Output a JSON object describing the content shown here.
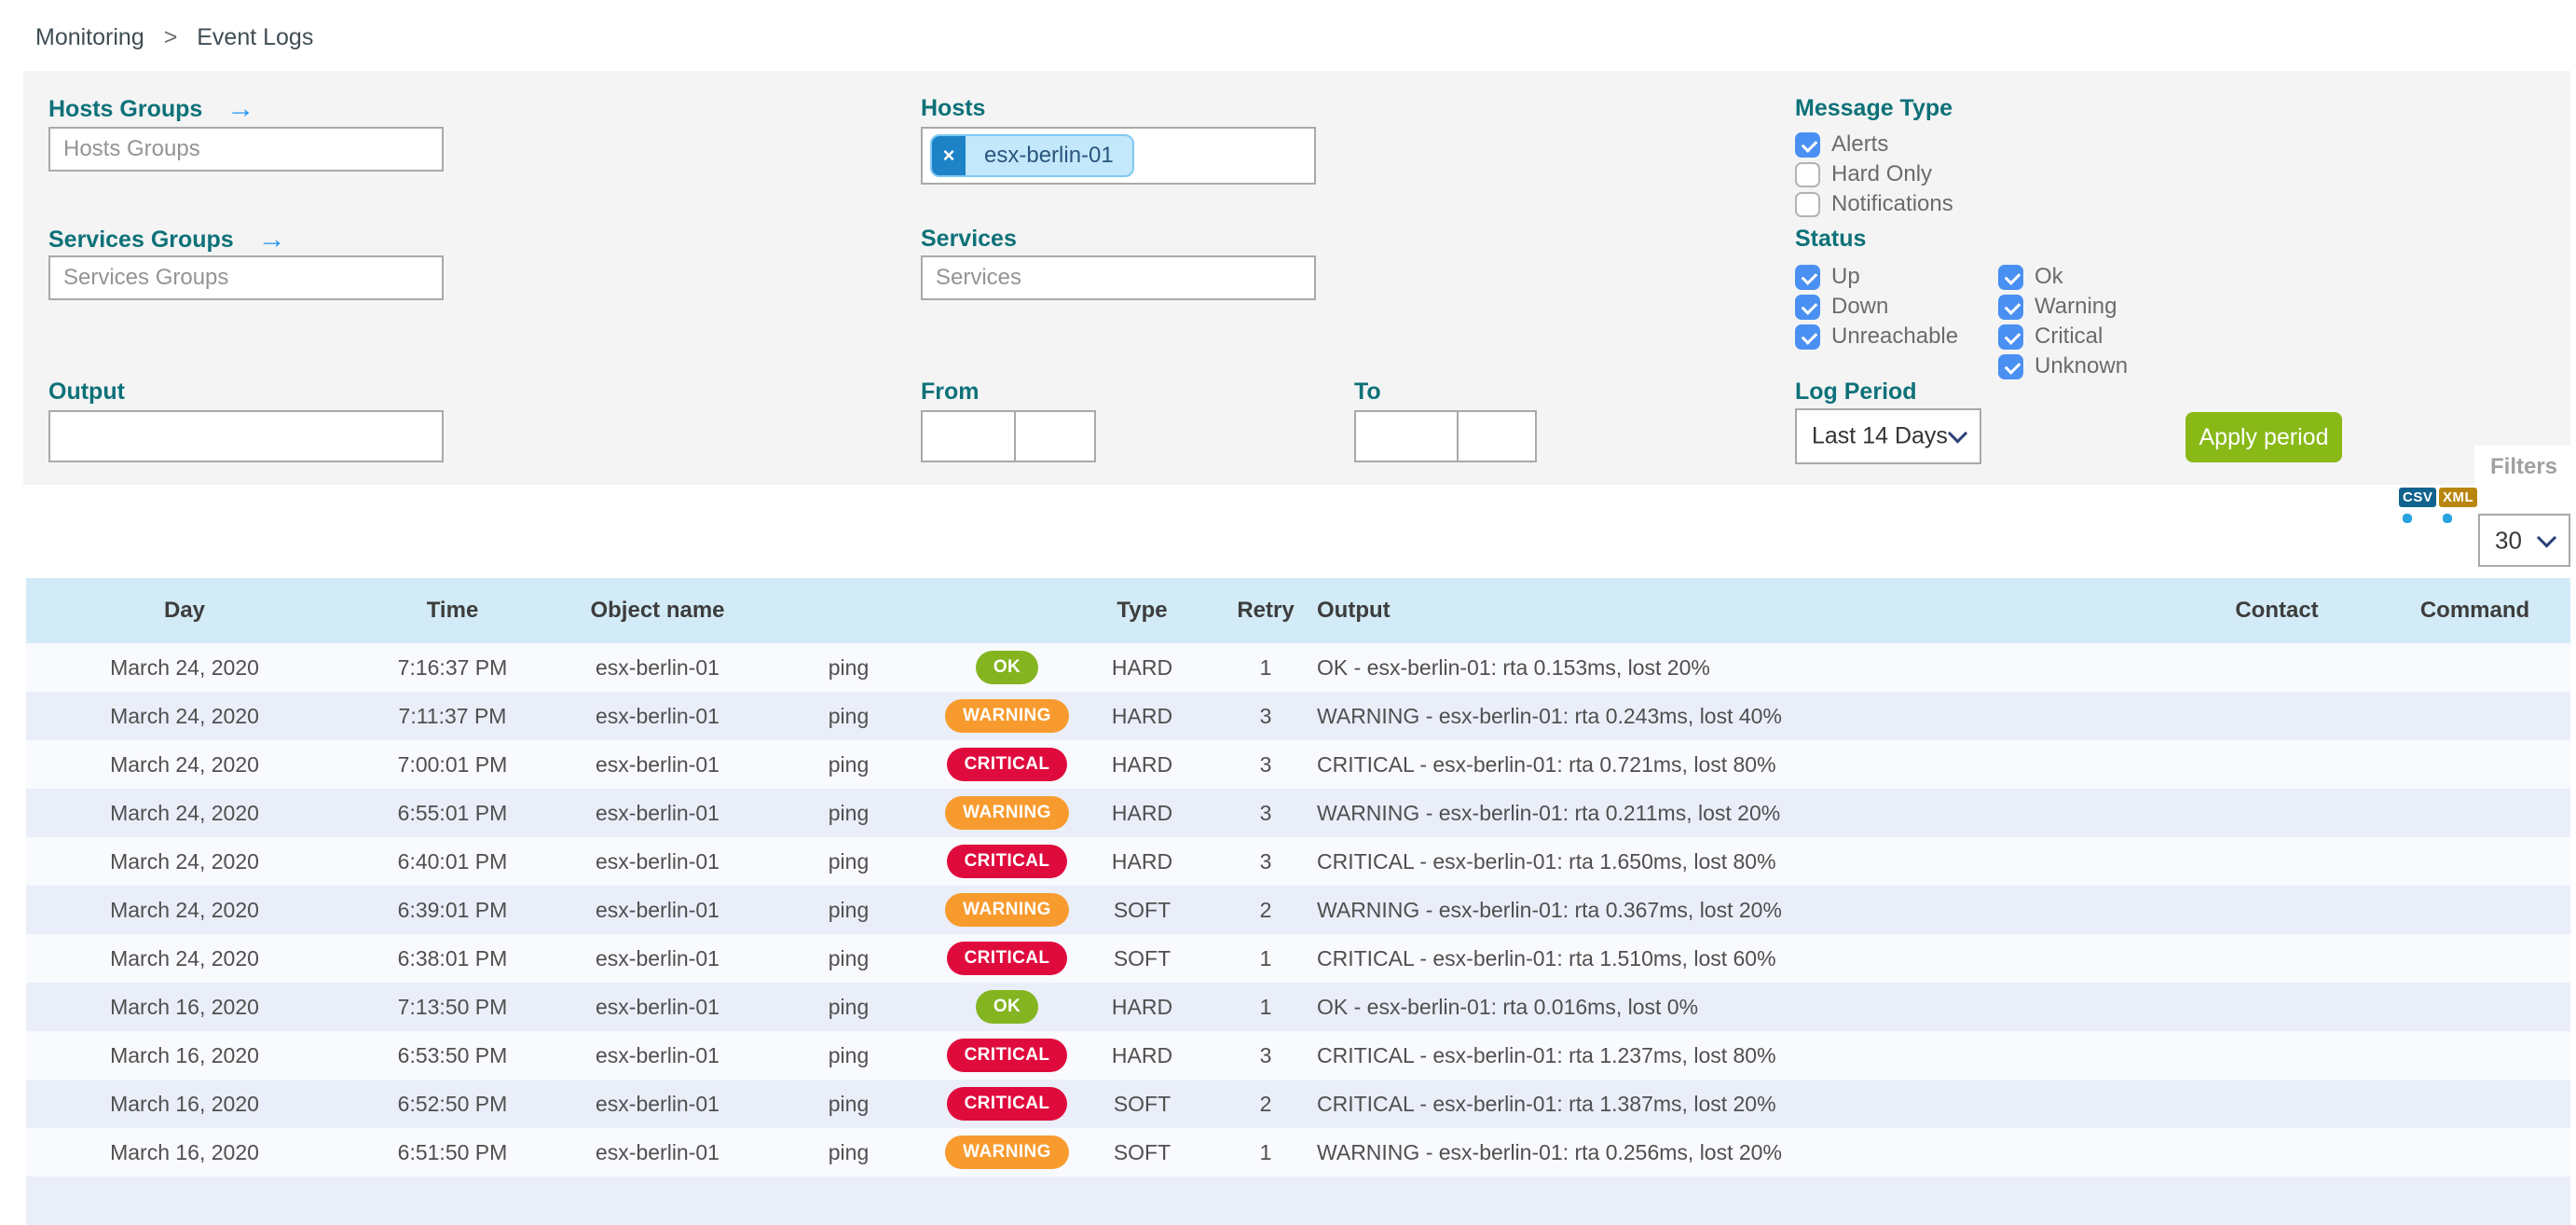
{
  "breadcrumb": {
    "section": "Monitoring",
    "separator": ">",
    "page": "Event Logs"
  },
  "filters": {
    "hosts_groups": {
      "label": "Hosts Groups",
      "placeholder": "Hosts Groups"
    },
    "services_groups": {
      "label": "Services Groups",
      "placeholder": "Services Groups"
    },
    "hosts": {
      "label": "Hosts",
      "chip": "esx-berlin-01",
      "chip_remove": "×"
    },
    "services": {
      "label": "Services",
      "placeholder": "Services"
    },
    "output": {
      "label": "Output",
      "value": ""
    },
    "from": {
      "label": "From",
      "date": "",
      "time": ""
    },
    "to": {
      "label": "To",
      "date": "",
      "time": ""
    },
    "message_type": {
      "label": "Message Type",
      "options": [
        {
          "label": "Alerts",
          "checked": true
        },
        {
          "label": "Hard Only",
          "checked": false
        },
        {
          "label": "Notifications",
          "checked": false
        }
      ]
    },
    "status": {
      "label": "Status",
      "columns": [
        [
          {
            "label": "Up",
            "checked": true
          },
          {
            "label": "Down",
            "checked": true
          },
          {
            "label": "Unreachable",
            "checked": true
          }
        ],
        [
          {
            "label": "Ok",
            "checked": true
          },
          {
            "label": "Warning",
            "checked": true
          },
          {
            "label": "Critical",
            "checked": true
          },
          {
            "label": "Unknown",
            "checked": true
          }
        ]
      ]
    },
    "log_period": {
      "label": "Log Period",
      "selected": "Last 14 Days"
    },
    "apply_button_label": "Apply period",
    "filters_tab_label": "Filters"
  },
  "toolbar": {
    "csv_label": "CSV",
    "xml_label": "XML",
    "rows_per_page": "30"
  },
  "table": {
    "columns": [
      {
        "key": "day",
        "label": "Day"
      },
      {
        "key": "time",
        "label": "Time"
      },
      {
        "key": "object",
        "label": "Object name"
      },
      {
        "key": "service",
        "label": ""
      },
      {
        "key": "status",
        "label": ""
      },
      {
        "key": "type",
        "label": "Type"
      },
      {
        "key": "retry",
        "label": "Retry"
      },
      {
        "key": "output",
        "label": "Output"
      },
      {
        "key": "contact",
        "label": "Contact"
      },
      {
        "key": "command",
        "label": "Command"
      }
    ],
    "rows": [
      {
        "day": "March 24, 2020",
        "time": "7:16:37 PM",
        "object": "esx-berlin-01",
        "service": "ping",
        "status": "OK",
        "type": "HARD",
        "retry": "1",
        "output": "OK - esx-berlin-01: rta 0.153ms, lost 20%",
        "contact": "",
        "command": ""
      },
      {
        "day": "March 24, 2020",
        "time": "7:11:37 PM",
        "object": "esx-berlin-01",
        "service": "ping",
        "status": "WARNING",
        "type": "HARD",
        "retry": "3",
        "output": "WARNING - esx-berlin-01: rta 0.243ms, lost 40%",
        "contact": "",
        "command": ""
      },
      {
        "day": "March 24, 2020",
        "time": "7:00:01 PM",
        "object": "esx-berlin-01",
        "service": "ping",
        "status": "CRITICAL",
        "type": "HARD",
        "retry": "3",
        "output": "CRITICAL - esx-berlin-01: rta 0.721ms, lost 80%",
        "contact": "",
        "command": ""
      },
      {
        "day": "March 24, 2020",
        "time": "6:55:01 PM",
        "object": "esx-berlin-01",
        "service": "ping",
        "status": "WARNING",
        "type": "HARD",
        "retry": "3",
        "output": "WARNING - esx-berlin-01: rta 0.211ms, lost 20%",
        "contact": "",
        "command": ""
      },
      {
        "day": "March 24, 2020",
        "time": "6:40:01 PM",
        "object": "esx-berlin-01",
        "service": "ping",
        "status": "CRITICAL",
        "type": "HARD",
        "retry": "3",
        "output": "CRITICAL - esx-berlin-01: rta 1.650ms, lost 80%",
        "contact": "",
        "command": ""
      },
      {
        "day": "March 24, 2020",
        "time": "6:39:01 PM",
        "object": "esx-berlin-01",
        "service": "ping",
        "status": "WARNING",
        "type": "SOFT",
        "retry": "2",
        "output": "WARNING - esx-berlin-01: rta 0.367ms, lost 20%",
        "contact": "",
        "command": ""
      },
      {
        "day": "March 24, 2020",
        "time": "6:38:01 PM",
        "object": "esx-berlin-01",
        "service": "ping",
        "status": "CRITICAL",
        "type": "SOFT",
        "retry": "1",
        "output": "CRITICAL - esx-berlin-01: rta 1.510ms, lost 60%",
        "contact": "",
        "command": ""
      },
      {
        "day": "March 16, 2020",
        "time": "7:13:50 PM",
        "object": "esx-berlin-01",
        "service": "ping",
        "status": "OK",
        "type": "HARD",
        "retry": "1",
        "output": "OK - esx-berlin-01: rta 0.016ms, lost 0%",
        "contact": "",
        "command": ""
      },
      {
        "day": "March 16, 2020",
        "time": "6:53:50 PM",
        "object": "esx-berlin-01",
        "service": "ping",
        "status": "CRITICAL",
        "type": "HARD",
        "retry": "3",
        "output": "CRITICAL - esx-berlin-01: rta 1.237ms, lost 80%",
        "contact": "",
        "command": ""
      },
      {
        "day": "March 16, 2020",
        "time": "6:52:50 PM",
        "object": "esx-berlin-01",
        "service": "ping",
        "status": "CRITICAL",
        "type": "SOFT",
        "retry": "2",
        "output": "CRITICAL - esx-berlin-01: rta 1.387ms, lost 20%",
        "contact": "",
        "command": ""
      },
      {
        "day": "March 16, 2020",
        "time": "6:51:50 PM",
        "object": "esx-berlin-01",
        "service": "ping",
        "status": "WARNING",
        "type": "SOFT",
        "retry": "1",
        "output": "WARNING - esx-berlin-01: rta 0.256ms, lost 20%",
        "contact": "",
        "command": ""
      }
    ]
  },
  "colors": {
    "accent_teal": "#0e7179",
    "apply_green": "#88b917",
    "checkbox_blue": "#4a90f2",
    "status_badges": {
      "OK": "#84b521",
      "WARNING": "#f89b2e",
      "CRITICAL": "#e00b3d"
    }
  }
}
